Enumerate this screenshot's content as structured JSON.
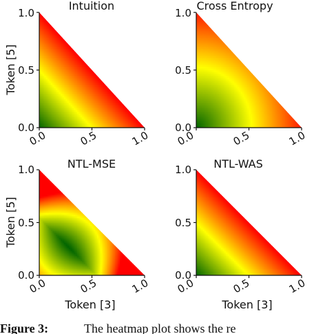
{
  "chart_data": [
    {
      "type": "heatmap",
      "title": "Intuition",
      "xlabel": "",
      "ylabel": "Token [5]",
      "xlim": [
        0.0,
        1.0
      ],
      "ylim": [
        0.0,
        1.0
      ],
      "x_ticks": [
        "0.0",
        "0.5",
        "1.0"
      ],
      "y_ticks": [
        "0.0",
        "0.5",
        "1.0"
      ],
      "domain": "lower-left triangle (x + y ≤ 1)",
      "colormap": [
        "#006400",
        "#ffff00",
        "#ff0000"
      ],
      "pattern": "green at origin increasing linearly with x + y to red along hypotenuse"
    },
    {
      "type": "heatmap",
      "title": "Cross Entropy",
      "xlabel": "",
      "ylabel": "",
      "xlim": [
        0.0,
        1.0
      ],
      "ylim": [
        0.0,
        1.0
      ],
      "x_ticks": [
        "0.0",
        "0.5",
        "1.0"
      ],
      "y_ticks": [
        "0.0",
        "0.5",
        "1.0"
      ],
      "domain": "lower-left triangle (x + y ≤ 1)",
      "colormap": [
        "#006400",
        "#ffff00",
        "#ff0000"
      ],
      "pattern": "green at origin, yellow ring near radius 0.8, red toward corners"
    },
    {
      "type": "heatmap",
      "title": "NTL-MSE",
      "xlabel": "Token [3]",
      "ylabel": "Token [5]",
      "xlim": [
        0.0,
        1.0
      ],
      "ylim": [
        0.0,
        1.0
      ],
      "x_ticks": [
        "0.0",
        "0.5",
        "1.0"
      ],
      "y_ticks": [
        "0.0",
        "0.5",
        "1.0"
      ],
      "domain": "lower-left triangle (x + y ≤ 1)",
      "colormap": [
        "#006400",
        "#ffff00",
        "#ff0000"
      ],
      "pattern": "dark green minimum band in interior, yellow then red near top and right corners"
    },
    {
      "type": "heatmap",
      "title": "NTL-WAS",
      "xlabel": "Token [3]",
      "ylabel": "",
      "xlim": [
        0.0,
        1.0
      ],
      "ylim": [
        0.0,
        1.0
      ],
      "x_ticks": [
        "0.0",
        "0.5",
        "1.0"
      ],
      "y_ticks": [
        "0.0",
        "0.5",
        "1.0"
      ],
      "domain": "lower-left triangle (x + y ≤ 1)",
      "colormap": [
        "#006400",
        "#ffff00",
        "#ff0000"
      ],
      "pattern": "green at origin increasing linearly with x + y to red along hypotenuse"
    }
  ],
  "caption": {
    "label": "Figure 3:",
    "text": "The heatmap plot shows the re"
  }
}
